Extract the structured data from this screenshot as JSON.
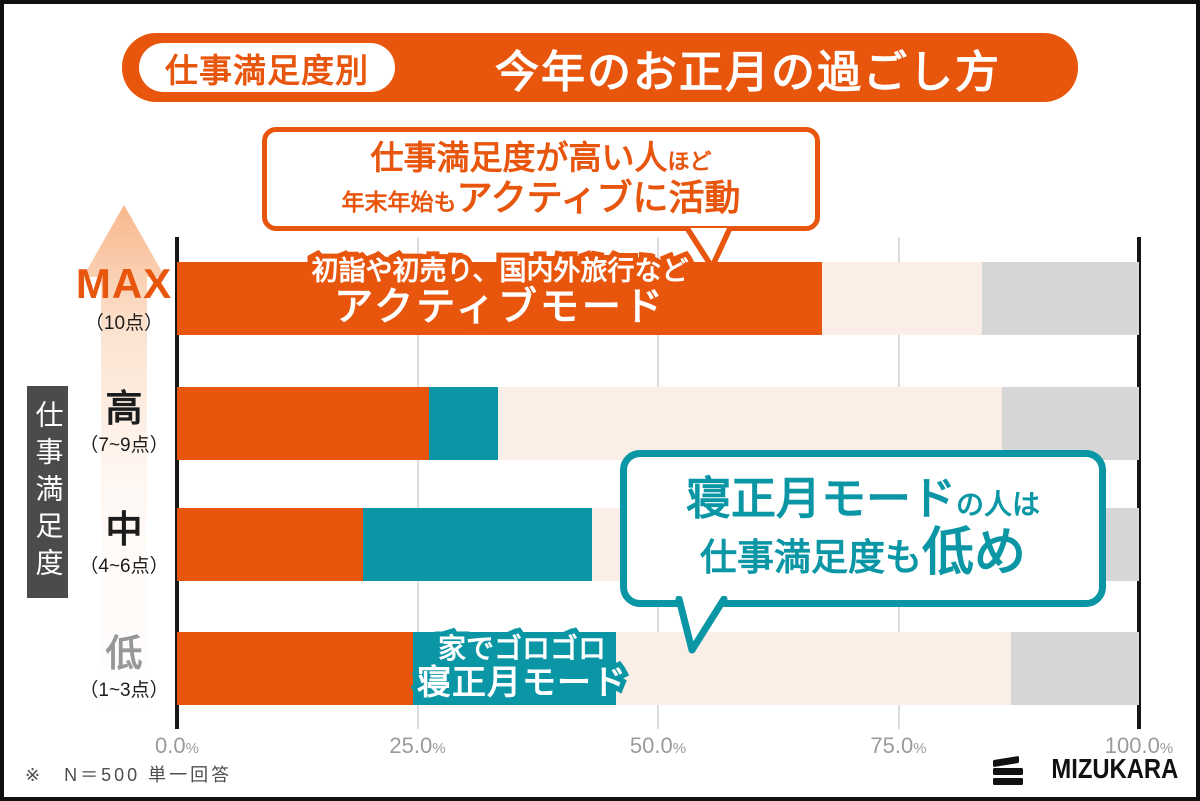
{
  "colors": {
    "orange": "#E8550D",
    "teal": "#0A96A5",
    "cream": "#FBEEE6",
    "gray": "#D6D6D6",
    "grid": "#DCDCDC",
    "axis_black": "#161616",
    "muted_label": "#979797",
    "tick_label": "#9B9B9B",
    "sidebar_bg": "#4B4B4B"
  },
  "header": {
    "badge": "仕事満足度別",
    "title": "今年のお正月の過ごし方"
  },
  "callout_active": {
    "line1_main": "仕事満足度が高い人",
    "line1_small": "ほど",
    "line2_small": "年末年始も",
    "line2_main": "アクティブに活動"
  },
  "callout_sleep": {
    "line1_main": "寝正月モード",
    "line1_small": "の人は",
    "line2_small": "仕事満足度も",
    "line2_main": "低め"
  },
  "sidebar": {
    "axis_title": "仕事満足度"
  },
  "bar_labels": {
    "active_line1": "初詣や初売り、国内外旅行など",
    "active_line2": "アクティブモード",
    "sleep_line1": "家でゴロゴロ",
    "sleep_line2": "寝正月モード"
  },
  "y_labels": [
    {
      "main": "MAX",
      "sub": "（10点）",
      "style": "max"
    },
    {
      "main": "高",
      "sub": "（7~9点）",
      "style": "normal"
    },
    {
      "main": "中",
      "sub": "（4~6点）",
      "style": "normal"
    },
    {
      "main": "低",
      "sub": "（1~3点）",
      "style": "muted"
    }
  ],
  "chart_data": {
    "type": "bar",
    "orientation": "horizontal",
    "stacked": true,
    "title": "仕事満足度別 今年のお正月の過ごし方",
    "categories": [
      "MAX（10点）",
      "高（7~9点）",
      "中（4~6点）",
      "低（1~3点）"
    ],
    "series": [
      {
        "name": "アクティブモード（初詣や初売り、国内外旅行など）",
        "color": "#E8550D",
        "values": [
          67.0,
          26.2,
          19.3,
          24.5
        ]
      },
      {
        "name": "寝正月モード（家でゴロゴロ）",
        "color": "#0A96A5",
        "values": [
          0.0,
          7.2,
          23.8,
          21.1
        ]
      },
      {
        "name": "unlabeled-light-segment",
        "color": "#FBEEE6",
        "values": [
          16.7,
          52.4,
          43.9,
          41.1
        ]
      },
      {
        "name": "unlabeled-gray-segment",
        "color": "#D6D6D6",
        "values": [
          16.3,
          14.2,
          13.0,
          13.3
        ]
      }
    ],
    "xlim": [
      0,
      100
    ],
    "gridlines": [
      25,
      50,
      75
    ],
    "x_ticks": [
      {
        "value": 0,
        "label": "0.0",
        "suffix": "%"
      },
      {
        "value": 25,
        "label": "25.0",
        "suffix": "%"
      },
      {
        "value": 50,
        "label": "50.0",
        "suffix": "%"
      },
      {
        "value": 75,
        "label": "75.0",
        "suffix": "%"
      },
      {
        "value": 100,
        "label": "100.0",
        "suffix": "%"
      }
    ],
    "legend_position": "none"
  },
  "footer": {
    "note": "※　N＝500 単一回答",
    "logo_text": "MIZUKARA"
  }
}
